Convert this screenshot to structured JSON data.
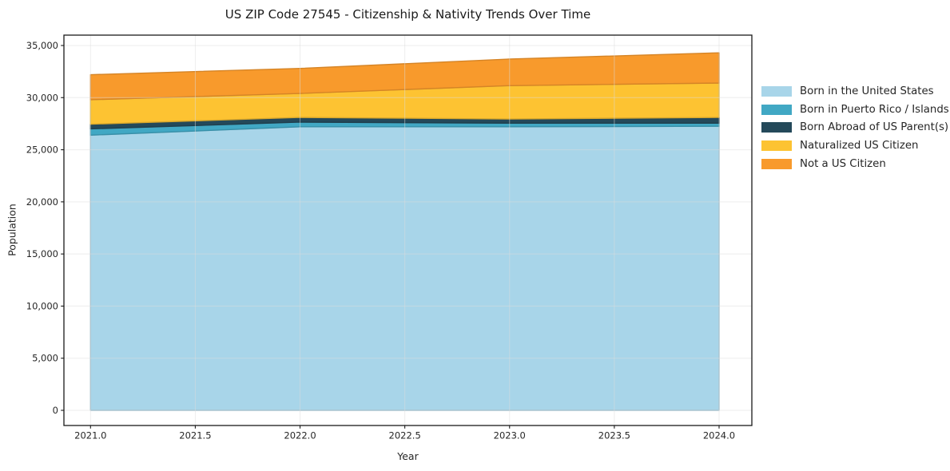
{
  "figure": {
    "background_color": "#ffffff",
    "frame_color": "#1a1a1a",
    "gridline_color": "#dcdcdc",
    "text_color": "#262626"
  },
  "chart_data": {
    "type": "area",
    "stacked": true,
    "title": "US ZIP Code 27545 - Citizenship & Nativity Trends Over Time",
    "xlabel": "Year",
    "ylabel": "Population",
    "x": [
      2021,
      2022,
      2023,
      2024
    ],
    "series": [
      {
        "name": "Born in the United States",
        "color": "#a8d5e9",
        "values": [
          26400,
          27200,
          27200,
          27250
        ]
      },
      {
        "name": "Born in Puerto Rico / Islands",
        "color": "#41a8c4",
        "values": [
          600,
          450,
          350,
          300
        ]
      },
      {
        "name": "Born Abroad of US Parent(s)",
        "color": "#24495a",
        "values": [
          450,
          450,
          400,
          550
        ]
      },
      {
        "name": "Naturalized US Citizen",
        "color": "#fdc332",
        "values": [
          2350,
          2300,
          3200,
          3300
        ]
      },
      {
        "name": "Not a US Citizen",
        "color": "#f89a2c",
        "values": [
          2400,
          2400,
          2550,
          2900
        ]
      }
    ],
    "stacked_totals": [
      32200,
      32800,
      33700,
      34300
    ],
    "xlim": [
      2020.87,
      2024.16
    ],
    "ylim": [
      -1715,
      36015
    ],
    "xtick_values": [
      2021.0,
      2021.5,
      2022.0,
      2022.5,
      2023.0,
      2023.5,
      2024.0
    ],
    "xticks": [
      "2021.0",
      "2021.5",
      "2022.0",
      "2022.5",
      "2023.0",
      "2023.5",
      "2024.0"
    ],
    "ytick_values": [
      0,
      5000,
      10000,
      15000,
      20000,
      25000,
      30000,
      35000
    ],
    "yticks": [
      "0",
      "5,000",
      "10,000",
      "15,000",
      "20,000",
      "25,000",
      "30,000",
      "35,000"
    ],
    "grid": true,
    "legend_position": "right"
  }
}
